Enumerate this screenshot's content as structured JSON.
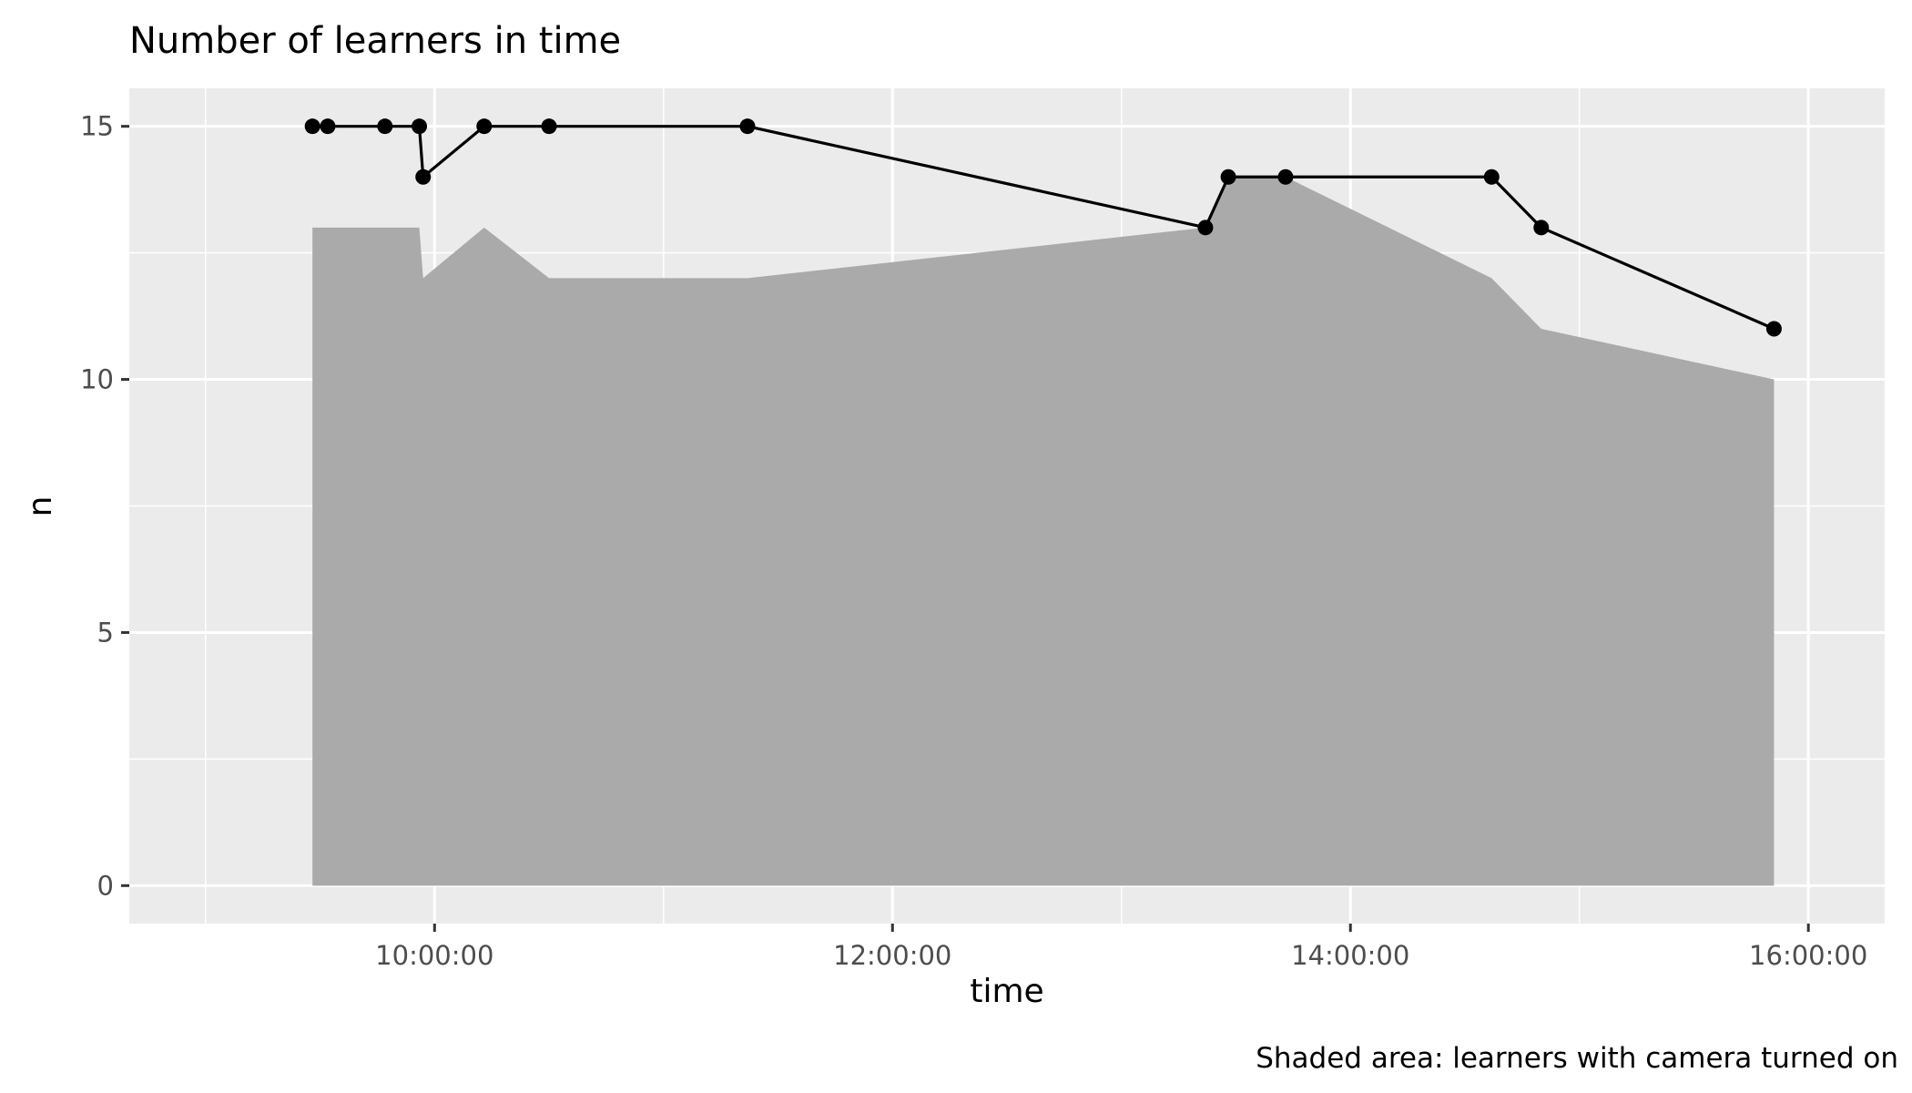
{
  "chart_data": {
    "type": "line",
    "title": "Number of learners in time",
    "xlabel": "time",
    "ylabel": "n",
    "caption": "Shaded area: learners with camera turned on",
    "x_ticks": [
      "10:00:00",
      "12:00:00",
      "14:00:00",
      "16:00:00"
    ],
    "y_ticks": [
      "0",
      "5",
      "10",
      "15"
    ],
    "xlim": [
      "08:40:00",
      "16:20:00"
    ],
    "ylim": [
      -0.75,
      15.75
    ],
    "grid": true,
    "legend": "none",
    "colors": {
      "panel": "#ebebeb",
      "grid": "#ffffff",
      "area": "#aaaaaa",
      "line": "#000000",
      "tick_text": "#4d4d4d"
    },
    "series": [
      {
        "kind": "line+points",
        "x": [
          "09:28:00",
          "09:32:00",
          "09:47:00",
          "09:56:00",
          "09:57:00",
          "10:13:00",
          "10:30:00",
          "11:22:00",
          "13:22:00",
          "13:28:00",
          "13:43:00",
          "14:37:00",
          "14:50:00",
          "15:51:00"
        ],
        "y": [
          15,
          15,
          15,
          15,
          14,
          15,
          15,
          15,
          13,
          14,
          14,
          14,
          13,
          11
        ]
      },
      {
        "kind": "area",
        "x": [
          "09:28:00",
          "09:56:00",
          "09:57:00",
          "10:13:00",
          "10:30:00",
          "11:22:00",
          "13:22:00",
          "13:28:00",
          "13:43:00",
          "14:37:00",
          "14:50:00",
          "15:51:00"
        ],
        "y": [
          13,
          13,
          12,
          13,
          12,
          12,
          13,
          14,
          14,
          12,
          11,
          10
        ]
      }
    ]
  }
}
